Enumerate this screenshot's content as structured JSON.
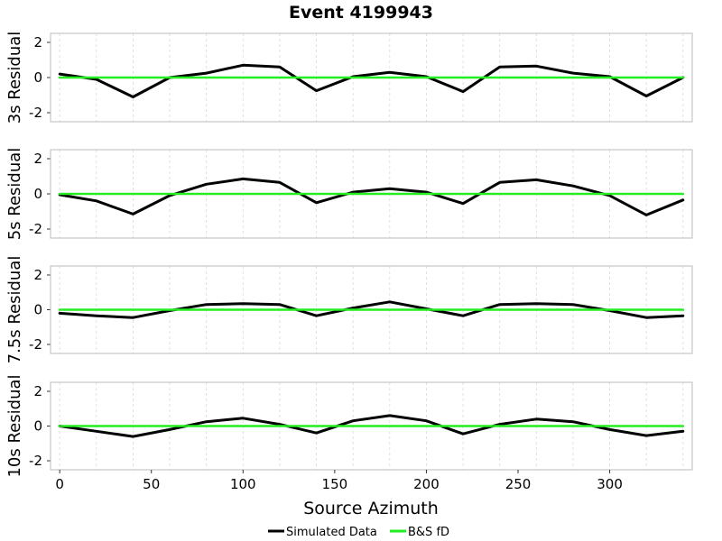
{
  "chart_data": {
    "type": "line",
    "title": "Event 4199943",
    "xlabel": "Source Azimuth",
    "xlim": [
      -5,
      345
    ],
    "xticks": [
      0,
      50,
      100,
      150,
      200,
      250,
      300
    ],
    "xgrid": [
      0,
      20,
      40,
      60,
      80,
      100,
      120,
      140,
      160,
      180,
      200,
      220,
      240,
      260,
      280,
      300,
      320,
      340
    ],
    "legend_position": "bottom-center",
    "legend": [
      {
        "name": "Simulated Data",
        "color": "#000000"
      },
      {
        "name": "B&S fD",
        "color": "#22ee22"
      }
    ],
    "x": [
      0,
      20,
      40,
      60,
      80,
      100,
      120,
      140,
      160,
      180,
      200,
      220,
      240,
      260,
      280,
      300,
      320,
      340
    ],
    "panels": [
      {
        "ylabel": "3s Residual",
        "ylim": [
          -2,
          2
        ],
        "yticks": [
          -2,
          0,
          2
        ],
        "series": [
          {
            "name": "Simulated Data",
            "color": "#000000",
            "values": [
              0.2,
              -0.1,
              -1.1,
              0.0,
              0.25,
              0.7,
              0.6,
              -0.75,
              0.05,
              0.3,
              0.05,
              -0.8,
              0.6,
              0.65,
              0.25,
              0.05,
              -1.05,
              0.0
            ]
          },
          {
            "name": "B&S fD",
            "color": "#22ee22",
            "values": [
              0,
              0,
              0,
              0,
              0,
              0,
              0,
              0,
              0,
              0,
              0,
              0,
              0,
              0,
              0,
              0,
              0,
              0
            ]
          }
        ]
      },
      {
        "ylabel": "5s Residual",
        "ylim": [
          -2,
          2
        ],
        "yticks": [
          -2,
          0,
          2
        ],
        "series": [
          {
            "name": "Simulated Data",
            "color": "#000000",
            "values": [
              -0.05,
              -0.4,
              -1.15,
              -0.1,
              0.55,
              0.85,
              0.65,
              -0.5,
              0.1,
              0.3,
              0.1,
              -0.55,
              0.65,
              0.8,
              0.45,
              -0.1,
              -1.2,
              -0.35
            ]
          },
          {
            "name": "B&S fD",
            "color": "#22ee22",
            "values": [
              0,
              0,
              0,
              0,
              0,
              0,
              0,
              0,
              0,
              0,
              0,
              0,
              0,
              0,
              0,
              0,
              0,
              0
            ]
          }
        ]
      },
      {
        "ylabel": "7.5s Residual",
        "ylim": [
          -2,
          2
        ],
        "yticks": [
          -2,
          0,
          2
        ],
        "series": [
          {
            "name": "Simulated Data",
            "color": "#000000",
            "values": [
              -0.2,
              -0.35,
              -0.45,
              -0.05,
              0.3,
              0.35,
              0.3,
              -0.35,
              0.1,
              0.45,
              0.05,
              -0.35,
              0.3,
              0.35,
              0.3,
              -0.05,
              -0.45,
              -0.35
            ]
          },
          {
            "name": "B&S fD",
            "color": "#22ee22",
            "values": [
              0,
              0,
              0,
              0,
              0,
              0,
              0,
              0,
              0,
              0,
              0,
              0,
              0,
              0,
              0,
              0,
              0,
              0
            ]
          }
        ]
      },
      {
        "ylabel": "10s Residual",
        "ylim": [
          -2,
          2
        ],
        "yticks": [
          -2,
          0,
          2
        ],
        "series": [
          {
            "name": "Simulated Data",
            "color": "#000000",
            "values": [
              0.0,
              -0.3,
              -0.6,
              -0.2,
              0.25,
              0.45,
              0.1,
              -0.4,
              0.3,
              0.6,
              0.3,
              -0.45,
              0.1,
              0.4,
              0.25,
              -0.2,
              -0.55,
              -0.3
            ]
          },
          {
            "name": "B&S fD",
            "color": "#22ee22",
            "values": [
              0,
              0,
              0,
              0,
              0,
              0,
              0,
              0,
              0,
              0,
              0,
              0,
              0,
              0,
              0,
              0,
              0,
              0
            ]
          }
        ]
      }
    ]
  }
}
